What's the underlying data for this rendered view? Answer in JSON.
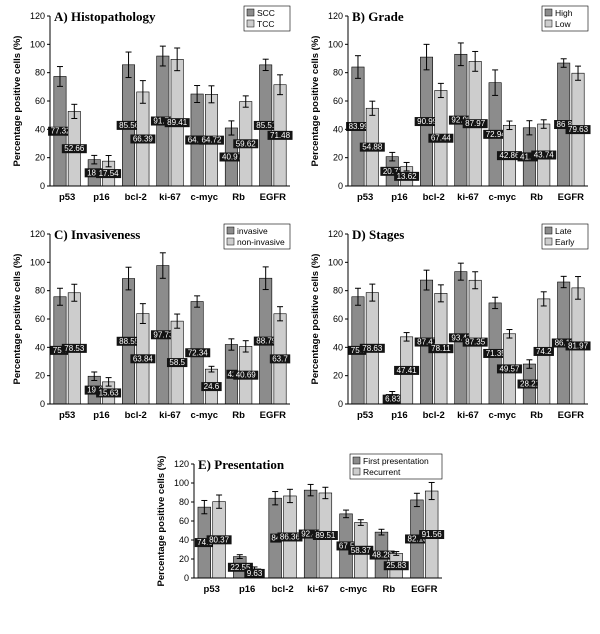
{
  "chart_data": [
    {
      "type": "bar",
      "title": "A) Histopathology",
      "ylabel": "Percentage positive cells (%)",
      "xlabel": "",
      "ylim": [
        0,
        120
      ],
      "yticks": [
        0,
        20,
        40,
        60,
        80,
        100,
        120
      ],
      "grid": false,
      "legend_position": "top-right",
      "categories": [
        "p53",
        "p16",
        "bcl-2",
        "ki-67",
        "c-myc",
        "Rb",
        "EGFR"
      ],
      "series": [
        {
          "name": "SCC",
          "color": "#8c8c8c",
          "values": [
            77.32,
            18.6,
            85.56,
            91.73,
            64.93,
            40.97,
            85.51
          ],
          "errors": [
            7,
            3,
            9,
            7,
            6,
            5,
            4
          ],
          "labels": [
            "77.32",
            "18.6",
            "85.56",
            "91.73",
            "64.93",
            "40.97",
            "85.51"
          ]
        },
        {
          "name": "TCC",
          "color": "#cdcdcd",
          "values": [
            52.66,
            17.54,
            66.39,
            89.41,
            64.72,
            59.62,
            71.48
          ],
          "errors": [
            5,
            4,
            8,
            8,
            6,
            4,
            7
          ],
          "labels": [
            "52.66",
            "17.54",
            "66.39",
            "89.41",
            "64.72",
            "59.62",
            "71.48"
          ]
        }
      ]
    },
    {
      "type": "bar",
      "title": "B) Grade",
      "ylabel": "Percentage positive cells (%)",
      "xlabel": "",
      "ylim": [
        0,
        120
      ],
      "yticks": [
        0,
        20,
        40,
        60,
        80,
        100,
        120
      ],
      "grid": false,
      "legend_position": "top-right",
      "categories": [
        "p53",
        "p16",
        "bcl-2",
        "ki-67",
        "c-myc",
        "Rb",
        "EGFR"
      ],
      "series": [
        {
          "name": "High",
          "color": "#8c8c8c",
          "values": [
            83.99,
            20.71,
            90.99,
            92.98,
            72.94,
            41.09,
            86.8
          ],
          "errors": [
            8,
            3,
            9,
            8,
            9,
            5,
            3
          ],
          "labels": [
            "83.99",
            "20.71",
            "90.99",
            "92.98",
            "72.94",
            "41.09",
            "86.8"
          ]
        },
        {
          "name": "Low",
          "color": "#cdcdcd",
          "values": [
            54.88,
            13.62,
            67.44,
            87.97,
            42.86,
            43.74,
            79.63
          ],
          "errors": [
            5,
            3,
            5,
            7,
            3,
            3,
            5
          ],
          "labels": [
            "54.88",
            "13.62",
            "67.44",
            "87.97",
            "42.86",
            "43.74",
            "79.63"
          ]
        }
      ]
    },
    {
      "type": "bar",
      "title": "C) Invasiveness",
      "ylabel": "Percentage positive cells (%)",
      "xlabel": "",
      "ylim": [
        0,
        120
      ],
      "yticks": [
        0,
        20,
        40,
        60,
        80,
        100,
        120
      ],
      "grid": false,
      "legend_position": "top-right",
      "categories": [
        "p53",
        "p16",
        "bcl-2",
        "ki-67",
        "c-myc",
        "Rb",
        "EGFR"
      ],
      "series": [
        {
          "name": "invasive",
          "color": "#8c8c8c",
          "values": [
            75.7,
            19.6,
            88.55,
            97.73,
            72.34,
            42,
            88.79
          ],
          "errors": [
            6,
            3,
            8,
            9,
            4,
            4,
            8
          ],
          "labels": [
            "75.7",
            "19.6",
            "88.55",
            "97.73",
            "72.34",
            "42",
            "88.79"
          ]
        },
        {
          "name": "non-invasive",
          "color": "#cdcdcd",
          "values": [
            78.53,
            15.63,
            63.84,
            58.5,
            24.6,
            40.69,
            63.7
          ],
          "errors": [
            6,
            3,
            7,
            5,
            2,
            4,
            5
          ],
          "labels": [
            "78.53",
            "15.63",
            "63.84",
            "58.5",
            "24.6",
            "40.69",
            "63.7"
          ]
        }
      ]
    },
    {
      "type": "bar",
      "title": "D) Stages",
      "ylabel": "Percentage positive cells (%)",
      "xlabel": "",
      "ylim": [
        0,
        120
      ],
      "yticks": [
        0,
        20,
        40,
        60,
        80,
        100,
        120
      ],
      "grid": false,
      "legend_position": "top-right",
      "categories": [
        "p53",
        "p16",
        "bcl-2",
        "ki-67",
        "c-myc",
        "Rb",
        "EGFR"
      ],
      "series": [
        {
          "name": "Late",
          "color": "#8c8c8c",
          "values": [
            75.7,
            6.83,
            87.47,
            93.42,
            71.35,
            28.21,
            86.11
          ],
          "errors": [
            6,
            2,
            7,
            6,
            4,
            3,
            4
          ],
          "labels": [
            "75.7",
            "6.83",
            "87.47",
            "93.42",
            "71.35",
            "28.21",
            "86.11"
          ]
        },
        {
          "name": "Early",
          "color": "#cdcdcd",
          "values": [
            78.63,
            47.41,
            78.11,
            87.35,
            49.57,
            74.2,
            81.97
          ],
          "errors": [
            6,
            3,
            6,
            6,
            3,
            5,
            8
          ],
          "labels": [
            "78.63",
            "47.41",
            "78.11",
            "87.35",
            "49.57",
            "74.2",
            "81.97"
          ]
        }
      ]
    },
    {
      "type": "bar",
      "title": "E) Presentation",
      "ylabel": "Percentage positive cells (%)",
      "xlabel": "",
      "ylim": [
        0,
        120
      ],
      "yticks": [
        0,
        20,
        40,
        60,
        80,
        100,
        120
      ],
      "grid": false,
      "legend_position": "top-right",
      "categories": [
        "p53",
        "p16",
        "bcl-2",
        "ki-67",
        "c-myc",
        "Rb",
        "EGFR"
      ],
      "series": [
        {
          "name": "First presentation",
          "color": "#8c8c8c",
          "values": [
            74.6,
            22.55,
            84,
            92.49,
            67.5,
            48.28,
            82.18
          ],
          "errors": [
            7,
            2,
            7,
            6,
            4,
            3,
            7
          ],
          "labels": [
            "74.6",
            "22.55",
            "84",
            "92.49",
            "67.5",
            "48.28",
            "82.18"
          ]
        },
        {
          "name": "Recurrent",
          "color": "#cdcdcd",
          "values": [
            80.37,
            9.63,
            86.36,
            89.51,
            58.37,
            25.83,
            91.56
          ],
          "errors": [
            7,
            2,
            7,
            6,
            3,
            2,
            9
          ],
          "labels": [
            "80.37",
            "9.63",
            "86.36",
            "89.51",
            "58.37",
            "25.83",
            "91.56"
          ]
        }
      ]
    }
  ]
}
